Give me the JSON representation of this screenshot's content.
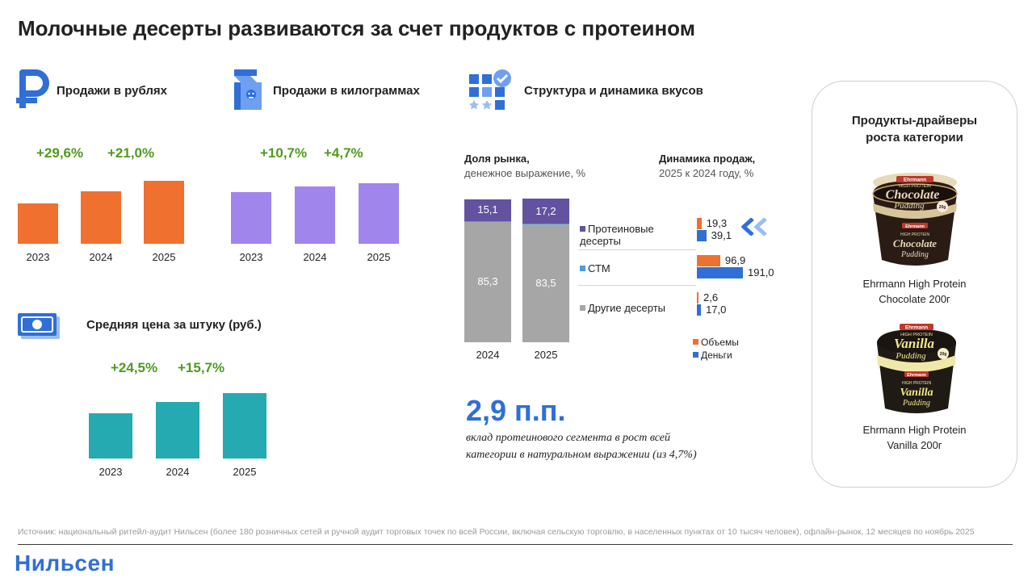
{
  "title": "Молочные десерты развиваются за счет продуктов с протеином",
  "colors": {
    "rub": "#f07030",
    "kg": "#a085ec",
    "price": "#24aab0",
    "protein": "#6352a0",
    "stm": "#4a9fe0",
    "other": "#a6a6a6",
    "volume": "#f07030",
    "money": "#2f6fd6",
    "accent": "#2f6fd6",
    "growth": "#4f9a1e"
  },
  "icons": {
    "rub": "ruble-icon",
    "kg": "milk-carton-icon",
    "structure": "grid-check-icon",
    "price": "banknote-icon",
    "arrows": "double-chevron-left-icon"
  },
  "sales_rub": {
    "label": "Продажи в рублях",
    "growth": [
      "+29,6%",
      "+21,0%"
    ]
  },
  "sales_kg": {
    "label": "Продажи в килограммах",
    "growth": [
      "+10,7%",
      "+4,7%"
    ]
  },
  "price": {
    "label": "Средняя цена за штуку (руб.)",
    "growth": [
      "+24,5%",
      "+15,7%"
    ]
  },
  "structure": {
    "label": "Структура и динамика вкусов",
    "share_title": "Доля рынка,",
    "share_sub": "денежное выражение, %",
    "dyn_title": "Динамика продаж,",
    "dyn_sub": "2025 к 2024 году, %",
    "categories": [
      "Протеиновые десерты",
      "СТМ",
      "Другие десерты"
    ],
    "legend": [
      "Объемы",
      "Деньги"
    ]
  },
  "highlight": {
    "value": "2,9 п.п.",
    "text_1": "вклад протеинового сегмента в рост всей",
    "text_2": "категории в натуральном выражении (из 4,7%)"
  },
  "drivers": {
    "title_1": "Продукты-драйверы",
    "title_2": "роста категории",
    "products": [
      {
        "name_1": "Ehrmann High Protein",
        "name_2": "Chocolate 200г",
        "brand": "Ehrmann",
        "line": "HIGH PROTEIN",
        "flavor_1": "Chocolate",
        "flavor_2": "Pudding",
        "badge": "20g"
      },
      {
        "name_1": "Ehrmann High Protein",
        "name_2": "Vanilla 200г",
        "brand": "Ehrmann",
        "line": "HIGH PROTEIN",
        "flavor_1": "Vanilla",
        "flavor_2": "Pudding",
        "badge": "20g"
      }
    ]
  },
  "source": "Источник: национальный ритейл-аудит Нильсен (более 180 розничных сетей и ручной аудит торговых точек по всей России, включая сельскую торговлю, в населенных пунктах от 10 тысяч человек), офлайн-рынок, 12 месяцев по ноябрь 2025",
  "logo": "Нильсен",
  "chart_data": [
    {
      "type": "bar",
      "title": "Продажи в рублях",
      "categories": [
        "2023",
        "2024",
        "2025"
      ],
      "values": [
        50,
        64.8,
        78.4
      ],
      "annotations": [
        "+29,6%",
        "+21,0%"
      ]
    },
    {
      "type": "bar",
      "title": "Продажи в килограммах",
      "categories": [
        "2023",
        "2024",
        "2025"
      ],
      "values": [
        64.5,
        71.4,
        74.8
      ],
      "annotations": [
        "+10,7%",
        "+4,7%"
      ]
    },
    {
      "type": "bar",
      "title": "Средняя цена за штуку (руб.)",
      "categories": [
        "2023",
        "2024",
        "2025"
      ],
      "values": [
        56,
        69.7,
        80.7
      ],
      "annotations": [
        "+24,5%",
        "+15,7%"
      ]
    },
    {
      "type": "bar",
      "stacked": true,
      "title": "Доля рынка, денежное выражение, %",
      "categories": [
        "2024",
        "2025"
      ],
      "series": [
        {
          "name": "Другие десерты",
          "values": [
            85.3,
            83.5
          ],
          "labels": [
            "85,3",
            "83,5"
          ]
        },
        {
          "name": "СТМ",
          "values": [
            0.3,
            0.3
          ]
        },
        {
          "name": "Протеиновые десерты",
          "values": [
            15.1,
            17.2
          ],
          "labels": [
            "15,1",
            "17,2"
          ]
        }
      ]
    },
    {
      "type": "bar",
      "orientation": "horizontal",
      "title": "Динамика продаж, 2025 к 2024 году, %",
      "categories": [
        "Протеиновые десерты",
        "СТМ",
        "Другие десерты"
      ],
      "series": [
        {
          "name": "Объемы",
          "values": [
            19.3,
            96.9,
            2.6
          ],
          "labels": [
            "19,3",
            "96,9",
            "2,6"
          ]
        },
        {
          "name": "Деньги",
          "values": [
            39.1,
            191.0,
            17.0
          ],
          "labels": [
            "39,1",
            "191,0",
            "17,0"
          ]
        }
      ]
    }
  ]
}
